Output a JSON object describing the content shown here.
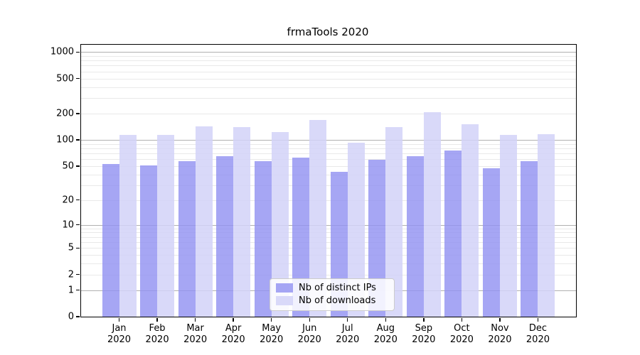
{
  "chart_data": {
    "type": "bar",
    "title": "frmaTools 2020",
    "categories": [
      "Jan 2020",
      "Feb 2020",
      "Mar 2020",
      "Apr 2020",
      "May 2020",
      "Jun 2020",
      "Jul 2020",
      "Aug 2020",
      "Sep 2020",
      "Oct 2020",
      "Nov 2020",
      "Dec 2020"
    ],
    "series": [
      {
        "name": "Nb of distinct IPs",
        "color": "#9292f1",
        "alpha": 0.82,
        "values": [
          53,
          51,
          57,
          65,
          57,
          62,
          43,
          59,
          65,
          76,
          47,
          57
        ]
      },
      {
        "name": "Nb of downloads",
        "color": "#d2d2f8",
        "alpha": 0.85,
        "values": [
          115,
          113,
          142,
          139,
          124,
          170,
          93,
          139,
          206,
          152,
          115,
          116
        ]
      }
    ],
    "xlabel": "",
    "ylabel": "",
    "y_axis": {
      "scale": "log1p",
      "tick_values": [
        0,
        1,
        2,
        5,
        10,
        20,
        50,
        100,
        200,
        500,
        1000
      ],
      "tick_labels": [
        "0",
        "1",
        "2",
        "5",
        "10",
        "20",
        "50",
        "100",
        "200",
        "500",
        "1000"
      ],
      "major_gridlines": [
        1,
        10,
        100,
        1000
      ],
      "top_transformed": 3.083
    },
    "legend_position": "lower center",
    "grid": true,
    "colors": {
      "major_grid": "#b0b0b0",
      "minor_grid": "#e9e9e9",
      "axis_frame": "#000000",
      "text": "#000000",
      "background": "#ffffff"
    }
  }
}
